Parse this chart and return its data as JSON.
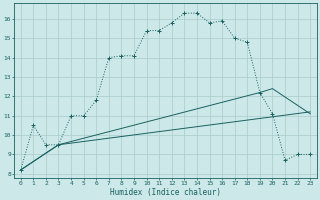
{
  "xlabel": "Humidex (Indice chaleur)",
  "background_color": "#cce8e8",
  "grid_color": "#aacccc",
  "line_color": "#1a6060",
  "xlim": [
    -0.5,
    23.5
  ],
  "ylim": [
    7.8,
    16.8
  ],
  "yticks": [
    8,
    9,
    10,
    11,
    12,
    13,
    14,
    15,
    16
  ],
  "xticks": [
    0,
    1,
    2,
    3,
    4,
    5,
    6,
    7,
    8,
    9,
    10,
    11,
    12,
    13,
    14,
    15,
    16,
    17,
    18,
    19,
    20,
    21,
    22,
    23
  ],
  "curve1_x": [
    0,
    1,
    2,
    3,
    4,
    5,
    6,
    7,
    8,
    9,
    10,
    11,
    12,
    13,
    14,
    15,
    16,
    17,
    18,
    19,
    20,
    21,
    22,
    23
  ],
  "curve1_y": [
    8.2,
    10.5,
    9.5,
    9.5,
    11.0,
    11.0,
    11.8,
    14.0,
    14.1,
    14.1,
    15.4,
    15.4,
    15.8,
    16.3,
    16.3,
    15.8,
    15.9,
    15.0,
    14.8,
    12.2,
    11.1,
    8.7,
    9.0,
    9.0
  ],
  "curve2_x": [
    0,
    3,
    23
  ],
  "curve2_y": [
    8.2,
    9.5,
    11.2
  ],
  "curve3_x": [
    0,
    3,
    19,
    20,
    23
  ],
  "curve3_y": [
    8.2,
    9.5,
    12.2,
    12.4,
    11.1
  ]
}
